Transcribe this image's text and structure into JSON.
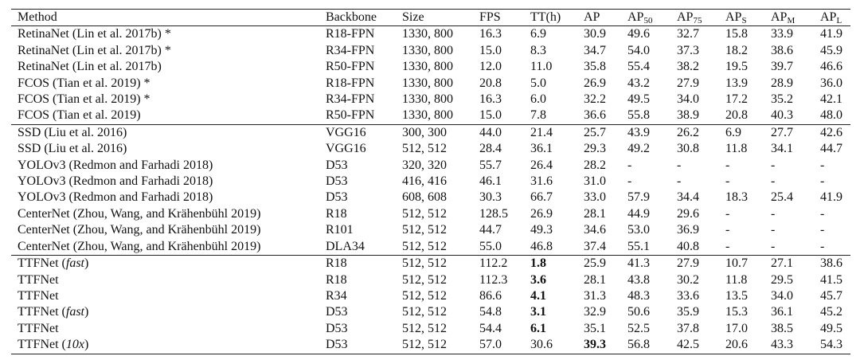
{
  "table": {
    "header": [
      {
        "text": "Method"
      },
      {
        "text": "Backbone"
      },
      {
        "text": "Size"
      },
      {
        "text": "FPS"
      },
      {
        "text": "TT(h)"
      },
      {
        "text": "AP"
      },
      {
        "text": "AP",
        "sub": "50"
      },
      {
        "text": "AP",
        "sub": "75"
      },
      {
        "text": "AP",
        "sub": "S"
      },
      {
        "text": "AP",
        "sub": "M"
      },
      {
        "text": "AP",
        "sub": "L"
      }
    ],
    "groups": [
      [
        {
          "cells": [
            [
              {
                "text": "RetinaNet (Lin et al. 2017b) *"
              }
            ],
            "R18-FPN",
            "1330, 800",
            "16.3",
            "6.9",
            "30.9",
            "49.6",
            "32.7",
            "15.8",
            "33.9",
            "41.9"
          ]
        },
        {
          "cells": [
            [
              {
                "text": "RetinaNet (Lin et al. 2017b) *"
              }
            ],
            "R34-FPN",
            "1330, 800",
            "15.0",
            "8.3",
            "34.7",
            "54.0",
            "37.3",
            "18.2",
            "38.6",
            "45.9"
          ]
        },
        {
          "cells": [
            [
              {
                "text": "RetinaNet (Lin et al. 2017b)"
              }
            ],
            "R50-FPN",
            "1330, 800",
            "12.0",
            "11.0",
            "35.8",
            "55.4",
            "38.2",
            "19.5",
            "39.7",
            "46.6"
          ]
        },
        {
          "cells": [
            [
              {
                "text": "FCOS (Tian et al. 2019) *"
              }
            ],
            "R18-FPN",
            "1330, 800",
            "20.8",
            "5.0",
            "26.9",
            "43.2",
            "27.9",
            "13.9",
            "28.9",
            "36.0"
          ]
        },
        {
          "cells": [
            [
              {
                "text": "FCOS (Tian et al. 2019) *"
              }
            ],
            "R34-FPN",
            "1330, 800",
            "16.3",
            "6.0",
            "32.2",
            "49.5",
            "34.0",
            "17.2",
            "35.2",
            "42.1"
          ]
        },
        {
          "cells": [
            [
              {
                "text": "FCOS (Tian et al. 2019)"
              }
            ],
            "R50-FPN",
            "1330, 800",
            "15.0",
            "7.8",
            "36.6",
            "55.8",
            "38.9",
            "20.8",
            "40.3",
            "48.0"
          ]
        }
      ],
      [
        {
          "cells": [
            [
              {
                "text": "SSD (Liu et al. 2016)"
              }
            ],
            "VGG16",
            "300, 300",
            "44.0",
            "21.4",
            "25.7",
            "43.9",
            "26.2",
            "6.9",
            "27.7",
            "42.6"
          ]
        },
        {
          "cells": [
            [
              {
                "text": "SSD (Liu et al. 2016)"
              }
            ],
            "VGG16",
            "512, 512",
            "28.4",
            "36.1",
            "29.3",
            "49.2",
            "30.8",
            "11.8",
            "34.1",
            "44.7"
          ]
        },
        {
          "cells": [
            [
              {
                "text": "YOLOv3 (Redmon and Farhadi 2018)"
              }
            ],
            "D53",
            "320, 320",
            "55.7",
            "26.4",
            "28.2",
            "-",
            "-",
            "-",
            "-",
            "-"
          ]
        },
        {
          "cells": [
            [
              {
                "text": "YOLOv3 (Redmon and Farhadi 2018)"
              }
            ],
            "D53",
            "416, 416",
            "46.1",
            "31.6",
            "31.0",
            "-",
            "-",
            "-",
            "-",
            "-"
          ]
        },
        {
          "cells": [
            [
              {
                "text": "YOLOv3 (Redmon and Farhadi 2018)"
              }
            ],
            "D53",
            "608, 608",
            "30.3",
            "66.7",
            "33.0",
            "57.9",
            "34.4",
            "18.3",
            "25.4",
            "41.9"
          ]
        },
        {
          "cells": [
            [
              {
                "text": "CenterNet (Zhou, Wang, and Krähenbühl 2019)"
              }
            ],
            "R18",
            "512, 512",
            "128.5",
            "26.9",
            "28.1",
            "44.9",
            "29.6",
            "-",
            "-",
            "-"
          ]
        },
        {
          "cells": [
            [
              {
                "text": "CenterNet (Zhou, Wang, and Krähenbühl 2019)"
              }
            ],
            "R101",
            "512, 512",
            "44.7",
            "49.3",
            "34.6",
            "53.0",
            "36.9",
            "-",
            "-",
            "-"
          ]
        },
        {
          "cells": [
            [
              {
                "text": "CenterNet (Zhou, Wang, and Krähenbühl 2019)"
              }
            ],
            "DLA34",
            "512, 512",
            "55.0",
            "46.8",
            "37.4",
            "55.1",
            "40.8",
            "-",
            "-",
            "-"
          ]
        }
      ],
      [
        {
          "cells": [
            [
              {
                "text": "TTFNet ("
              },
              {
                "text": "fast",
                "italic": true
              },
              {
                "text": ")"
              }
            ],
            "R18",
            "512, 512",
            "112.2",
            "1.8",
            "25.9",
            "41.3",
            "27.9",
            "10.7",
            "27.1",
            "38.6"
          ],
          "bold": [
            4
          ]
        },
        {
          "cells": [
            [
              {
                "text": "TTFNet"
              }
            ],
            "R18",
            "512, 512",
            "112.3",
            "3.6",
            "28.1",
            "43.8",
            "30.2",
            "11.8",
            "29.5",
            "41.5"
          ],
          "bold": [
            4
          ]
        },
        {
          "cells": [
            [
              {
                "text": "TTFNet"
              }
            ],
            "R34",
            "512, 512",
            "86.6",
            "4.1",
            "31.3",
            "48.3",
            "33.6",
            "13.5",
            "34.0",
            "45.7"
          ],
          "bold": [
            4
          ]
        },
        {
          "cells": [
            [
              {
                "text": "TTFNet ("
              },
              {
                "text": "fast",
                "italic": true
              },
              {
                "text": ")"
              }
            ],
            "D53",
            "512, 512",
            "54.8",
            "3.1",
            "32.9",
            "50.6",
            "35.9",
            "15.3",
            "36.1",
            "45.2"
          ],
          "bold": [
            4
          ]
        },
        {
          "cells": [
            [
              {
                "text": "TTFNet"
              }
            ],
            "D53",
            "512, 512",
            "54.4",
            "6.1",
            "35.1",
            "52.5",
            "37.8",
            "17.0",
            "38.5",
            "49.5"
          ],
          "bold": [
            4
          ]
        },
        {
          "cells": [
            [
              {
                "text": "TTFNet ("
              },
              {
                "text": "10x",
                "italic": true
              },
              {
                "text": ")"
              }
            ],
            "D53",
            "512, 512",
            "57.0",
            "30.6",
            "39.3",
            "56.8",
            "42.5",
            "20.6",
            "43.3",
            "54.3"
          ],
          "bold": [
            5
          ]
        }
      ]
    ]
  }
}
